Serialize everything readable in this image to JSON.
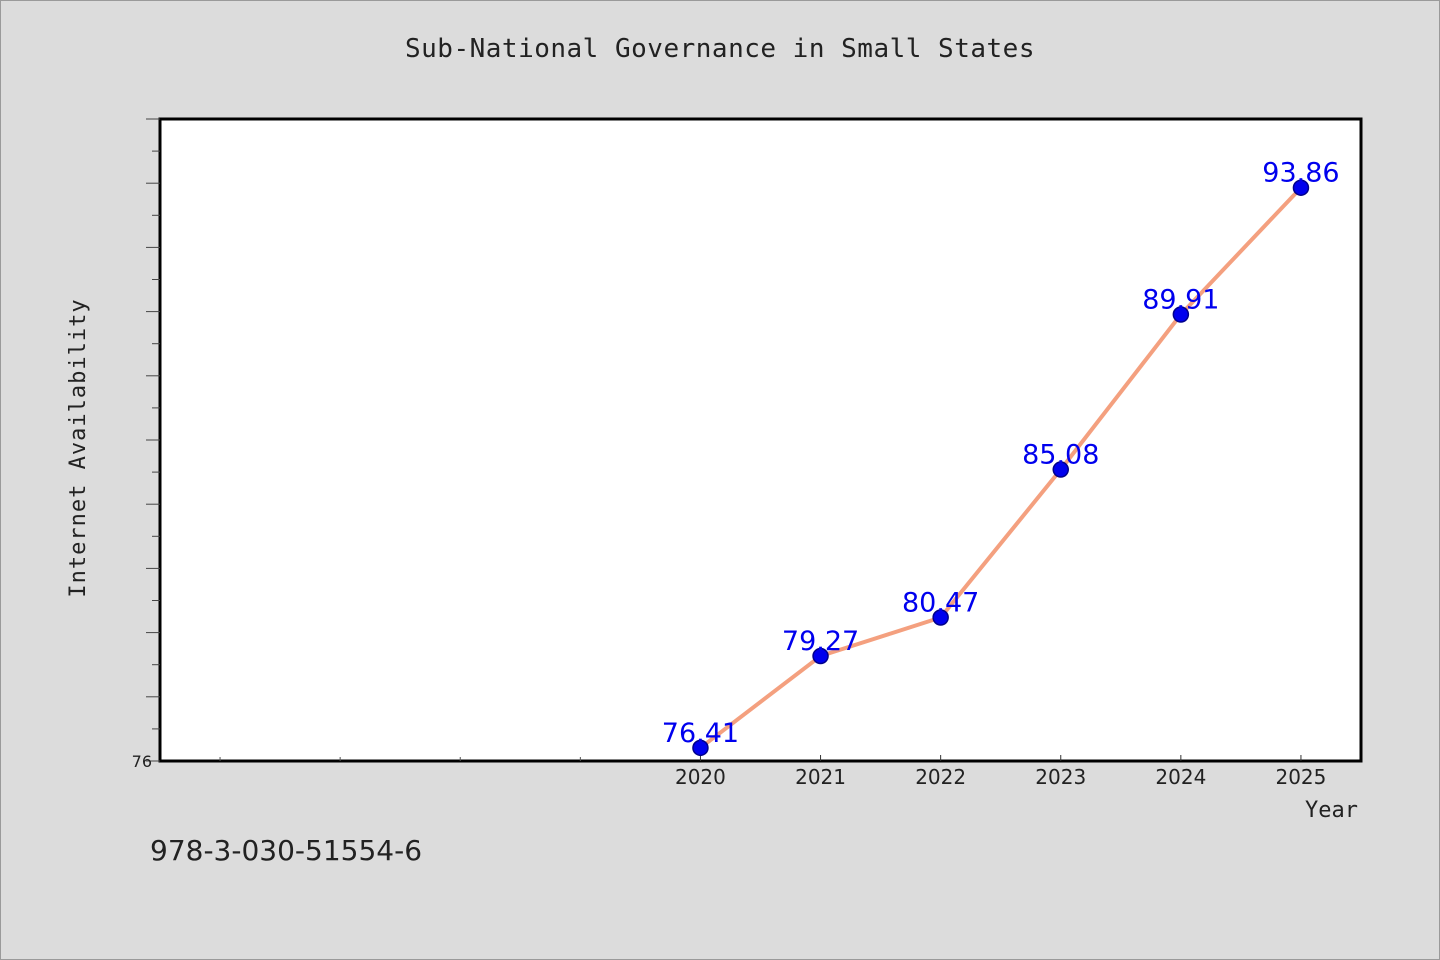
{
  "chart_data": {
    "type": "line",
    "title": "Sub-National Governance in Small States",
    "xlabel": "Year",
    "ylabel": "Internet Availability",
    "x": [
      2020,
      2021,
      2022,
      2023,
      2024,
      2025
    ],
    "x_tick_labels": [
      "2020",
      "2021",
      "2022",
      "2023",
      "2024",
      "2025"
    ],
    "xlim": [
      2015.5,
      2025.5
    ],
    "ylim": [
      76,
      96
    ],
    "y_tick_labels": [
      "76"
    ],
    "series": [
      {
        "values": [
          76.41,
          79.27,
          80.47,
          85.08,
          89.91,
          93.86
        ],
        "data_labels": [
          "76.41",
          "79.27",
          "80.47",
          "85.08",
          "89.91",
          "93.86"
        ]
      }
    ],
    "grid": false,
    "colors": {
      "line": "#f4a07f",
      "marker": "#0000ee",
      "marker_edge": "#00008b",
      "label": "#0000ee",
      "background": "#dcdcdc",
      "plot_background": "#ffffff"
    }
  },
  "footer": {
    "isbn": "978-3-030-51554-6"
  }
}
